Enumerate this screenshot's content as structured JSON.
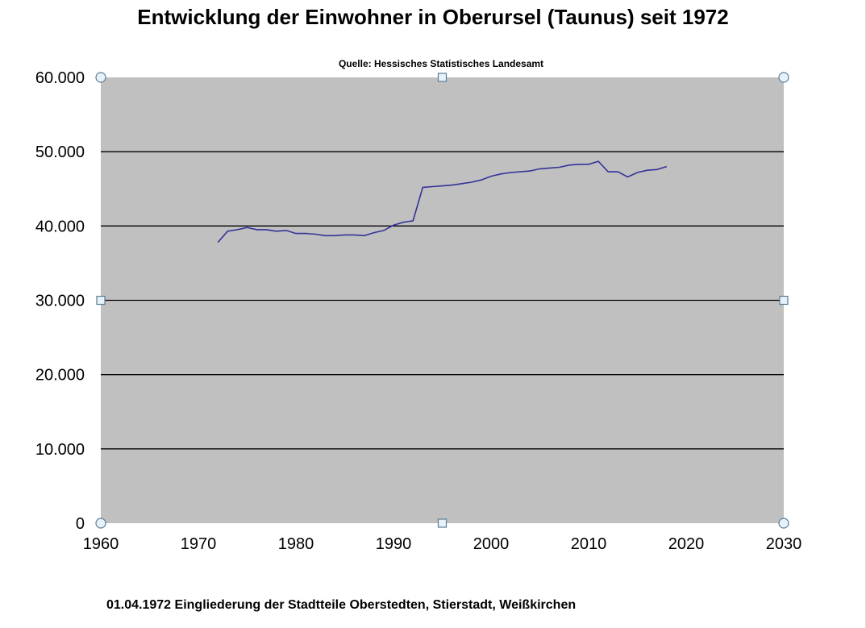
{
  "chart_data": {
    "type": "line",
    "title": "Entwicklung der Einwohner in Oberursel (Taunus) seit 1972",
    "subtitle": "Quelle: Hessisches Statistisches Landesamt",
    "xlabel": "",
    "ylabel": "",
    "xlim": [
      1960,
      2030
    ],
    "ylim": [
      0,
      60000
    ],
    "x_ticks": [
      "1960",
      "1970",
      "1980",
      "1990",
      "2000",
      "2010",
      "2020",
      "2030"
    ],
    "y_ticks": [
      "0",
      "10.000",
      "20.000",
      "30.000",
      "40.000",
      "50.000",
      "60.000"
    ],
    "grid": true,
    "legend": "none",
    "plot_background": "#c0c0c0",
    "line_color": "#333399",
    "x": [
      1972,
      1973,
      1974,
      1975,
      1976,
      1977,
      1978,
      1979,
      1980,
      1981,
      1982,
      1983,
      1984,
      1985,
      1986,
      1987,
      1988,
      1989,
      1990,
      1991,
      1992,
      1993,
      1994,
      1995,
      1996,
      1997,
      1998,
      1999,
      2000,
      2001,
      2002,
      2003,
      2004,
      2005,
      2006,
      2007,
      2008,
      2009,
      2010,
      2011,
      2012,
      2013,
      2014,
      2015,
      2016,
      2017,
      2018
    ],
    "y": [
      37800,
      39300,
      39500,
      39800,
      39500,
      39500,
      39300,
      39400,
      39000,
      39000,
      38900,
      38700,
      38700,
      38800,
      38800,
      38700,
      39100,
      39400,
      40100,
      40500,
      40700,
      45200,
      45300,
      45400,
      45500,
      45700,
      45900,
      46200,
      46700,
      47000,
      47200,
      47300,
      47400,
      47700,
      47800,
      47900,
      48200,
      48300,
      48300,
      48700,
      47300,
      47300,
      46600,
      47200,
      47500,
      47600,
      48000
    ],
    "annotation": "01.04.1972 Eingliederung der Stadtteile Oberstedten, Stierstadt, Weißkirchen"
  }
}
